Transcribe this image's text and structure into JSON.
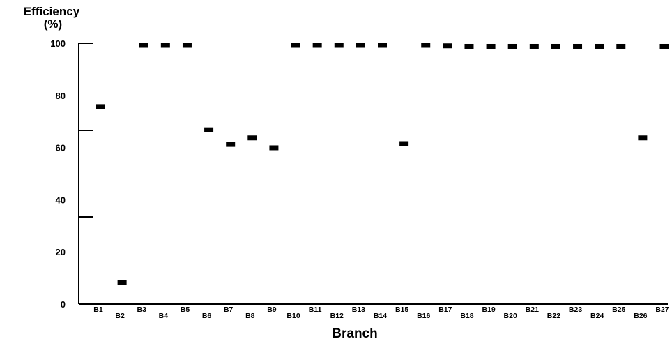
{
  "chart_data": {
    "type": "scatter",
    "title": "",
    "ylabel_lines": [
      "Efficiency",
      "(%)"
    ],
    "xlabel": "Branch",
    "ylim": [
      0,
      100
    ],
    "yticks": [
      "0",
      "20",
      "40",
      "60",
      "80",
      "100"
    ],
    "grid": false,
    "categories": [
      "B1",
      "B2",
      "B3",
      "B4",
      "B5",
      "B6",
      "B7",
      "B8",
      "B9",
      "B10",
      "B11",
      "B12",
      "B13",
      "B14",
      "B15",
      "B16",
      "B17",
      "B18",
      "B19",
      "B20",
      "B21",
      "B22",
      "B23",
      "B24",
      "B25",
      "B26",
      "B27"
    ],
    "series": [
      {
        "values": [
          75.7,
          8.3,
          99.2,
          99.2,
          99.2,
          66.8,
          61.2,
          63.7,
          59.9,
          99.2,
          99.2,
          99.2,
          99.2,
          99.2,
          61.5,
          99.2,
          99.0,
          98.8,
          98.8,
          98.8,
          98.8,
          98.8,
          98.8,
          98.8,
          98.8,
          63.7,
          98.8
        ]
      }
    ]
  }
}
